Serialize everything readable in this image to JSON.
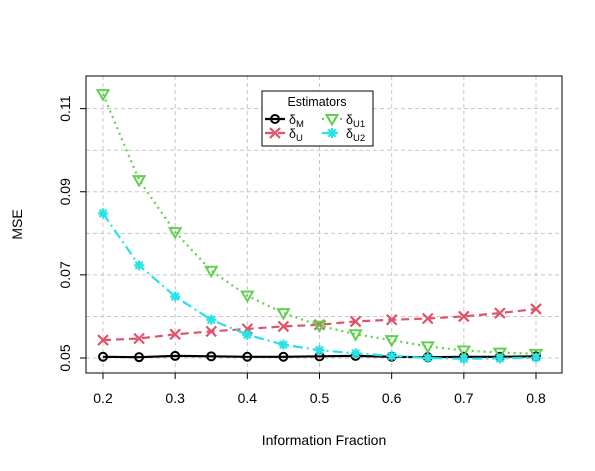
{
  "chart_data": {
    "type": "line",
    "xlabel": "Information Fraction",
    "ylabel": "MSE",
    "xlim": [
      0.2,
      0.8
    ],
    "ylim": [
      0.05,
      0.114
    ],
    "x_ticks": [
      0.2,
      0.3,
      0.4,
      0.5,
      0.6,
      0.7,
      0.8
    ],
    "y_ticks": [
      0.05,
      0.07,
      0.09,
      0.11
    ],
    "grid": true,
    "x": [
      0.2,
      0.25,
      0.3,
      0.35,
      0.4,
      0.45,
      0.5,
      0.55,
      0.6,
      0.65,
      0.7,
      0.75,
      0.8
    ],
    "series": [
      {
        "name": "δM",
        "base": "δ",
        "sub": "M",
        "color": "#000000",
        "marker": "circle",
        "linestyle": "solid",
        "values": [
          0.0503,
          0.0502,
          0.0505,
          0.0504,
          0.0503,
          0.0503,
          0.0504,
          0.0505,
          0.0503,
          0.0502,
          0.0503,
          0.0503,
          0.0504
        ]
      },
      {
        "name": "δU",
        "base": "δ",
        "sub": "U",
        "color": "#DF536B",
        "marker": "x",
        "linestyle": "dashed",
        "values": [
          0.0543,
          0.0547,
          0.0557,
          0.0564,
          0.057,
          0.0576,
          0.058,
          0.0588,
          0.0592,
          0.0595,
          0.06,
          0.0608,
          0.0618
        ]
      },
      {
        "name": "δU1",
        "base": "δ",
        "sub": "U1",
        "color": "#61D04F",
        "marker": "triangle-down",
        "linestyle": "dotted",
        "values": [
          0.1135,
          0.0928,
          0.0803,
          0.071,
          0.065,
          0.0608,
          0.0578,
          0.0557,
          0.0543,
          0.0528,
          0.0518,
          0.0513,
          0.051
        ]
      },
      {
        "name": "δU2",
        "base": "δ",
        "sub": "U2",
        "color": "#28E2E5",
        "marker": "asterisk",
        "linestyle": "dashdot",
        "values": [
          0.0848,
          0.0723,
          0.0648,
          0.0592,
          0.0556,
          0.0532,
          0.0519,
          0.0511,
          0.0505,
          0.05,
          0.0498,
          0.0499,
          0.0501
        ]
      }
    ],
    "legend": {
      "title": "Estimators",
      "placement": "top-center"
    }
  }
}
